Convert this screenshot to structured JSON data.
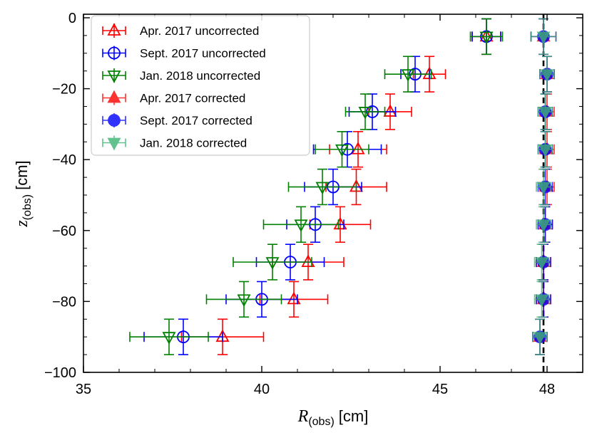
{
  "chart_data": {
    "type": "scatter",
    "title": "",
    "xlabel": {
      "symbol": "R",
      "subscript": "(obs)",
      "unit": "[cm]"
    },
    "ylabel": {
      "symbol": "z",
      "subscript": "(obs)",
      "unit": "[cm]"
    },
    "xlim": [
      35,
      49
    ],
    "ylim": [
      -100,
      1
    ],
    "xticks": [
      35,
      40,
      45,
      48
    ],
    "xtick_labels": [
      "35",
      "40",
      "45",
      "48"
    ],
    "yticks": [
      0,
      -20,
      -40,
      -60,
      -80,
      -100
    ],
    "ytick_labels": [
      "0",
      "−20",
      "−40",
      "−60",
      "−80",
      "−100"
    ],
    "reference_line": {
      "x": 47.9,
      "style": "dashed",
      "color": "#000000"
    },
    "legend_position": "top-left",
    "series": [
      {
        "name": "Apr. 2017 uncorrected",
        "color": "#ff0000",
        "marker": "triangle-up",
        "filled": false,
        "points": [
          {
            "x": 46.3,
            "y": -5.3,
            "xerr": 0.4,
            "yerr": 5
          },
          {
            "x": 44.7,
            "y": -15.9,
            "xerr": 0.45,
            "yerr": 5
          },
          {
            "x": 43.6,
            "y": -26.5,
            "xerr": 0.6,
            "yerr": 5
          },
          {
            "x": 42.7,
            "y": -37.1,
            "xerr": 0.8,
            "yerr": 5
          },
          {
            "x": 42.65,
            "y": -47.7,
            "xerr": 0.85,
            "yerr": 5
          },
          {
            "x": 42.2,
            "y": -58.3,
            "xerr": 0.85,
            "yerr": 5
          },
          {
            "x": 41.3,
            "y": -68.9,
            "xerr": 1.0,
            "yerr": 5
          },
          {
            "x": 40.9,
            "y": -79.4,
            "xerr": 0.95,
            "yerr": 5
          },
          {
            "x": 38.9,
            "y": -90.0,
            "xerr": 1.15,
            "yerr": 5
          }
        ]
      },
      {
        "name": "Sept. 2017 uncorrected",
        "color": "#0000ff",
        "marker": "circle",
        "filled": false,
        "points": [
          {
            "x": 46.3,
            "y": -5.3,
            "xerr": 0.4,
            "yerr": 5
          },
          {
            "x": 44.3,
            "y": -15.9,
            "xerr": 0.4,
            "yerr": 5
          },
          {
            "x": 43.1,
            "y": -26.5,
            "xerr": 0.65,
            "yerr": 5
          },
          {
            "x": 42.4,
            "y": -37.1,
            "xerr": 0.95,
            "yerr": 5
          },
          {
            "x": 42.0,
            "y": -47.7,
            "xerr": 0.8,
            "yerr": 5
          },
          {
            "x": 41.5,
            "y": -58.3,
            "xerr": 0.8,
            "yerr": 5
          },
          {
            "x": 40.8,
            "y": -68.9,
            "xerr": 0.95,
            "yerr": 5
          },
          {
            "x": 40.0,
            "y": -79.4,
            "xerr": 1.0,
            "yerr": 5
          },
          {
            "x": 37.8,
            "y": -90.0,
            "xerr": 1.1,
            "yerr": 5
          }
        ]
      },
      {
        "name": "Jan. 2018 uncorrected",
        "color": "#008000",
        "marker": "triangle-down",
        "filled": false,
        "points": [
          {
            "x": 46.3,
            "y": -5.3,
            "xerr": 0.45,
            "yerr": 5
          },
          {
            "x": 44.1,
            "y": -15.9,
            "xerr": 0.65,
            "yerr": 5
          },
          {
            "x": 42.9,
            "y": -26.5,
            "xerr": 0.55,
            "yerr": 5
          },
          {
            "x": 42.25,
            "y": -37.1,
            "xerr": 0.75,
            "yerr": 5
          },
          {
            "x": 41.7,
            "y": -47.7,
            "xerr": 0.95,
            "yerr": 5
          },
          {
            "x": 41.1,
            "y": -58.3,
            "xerr": 1.05,
            "yerr": 5
          },
          {
            "x": 40.3,
            "y": -68.9,
            "xerr": 1.1,
            "yerr": 5
          },
          {
            "x": 39.5,
            "y": -79.4,
            "xerr": 1.05,
            "yerr": 5
          },
          {
            "x": 37.4,
            "y": -90.0,
            "xerr": 1.1,
            "yerr": 5
          }
        ]
      },
      {
        "name": "Apr. 2017 corrected",
        "color": "#ff0000",
        "marker": "triangle-up",
        "filled": true,
        "points": [
          {
            "x": 47.9,
            "y": -5.3,
            "xerr": 0.35,
            "yerr": 5
          },
          {
            "x": 48.0,
            "y": -15.9,
            "xerr": 0.2,
            "yerr": 5
          },
          {
            "x": 48.0,
            "y": -26.5,
            "xerr": 0.2,
            "yerr": 5
          },
          {
            "x": 48.0,
            "y": -37.1,
            "xerr": 0.2,
            "yerr": 5
          },
          {
            "x": 48.0,
            "y": -47.7,
            "xerr": 0.2,
            "yerr": 5
          },
          {
            "x": 47.95,
            "y": -58.3,
            "xerr": 0.2,
            "yerr": 5
          },
          {
            "x": 47.9,
            "y": -68.9,
            "xerr": 0.2,
            "yerr": 5
          },
          {
            "x": 47.9,
            "y": -79.4,
            "xerr": 0.2,
            "yerr": 5
          },
          {
            "x": 47.8,
            "y": -90.0,
            "xerr": 0.2,
            "yerr": 5
          }
        ]
      },
      {
        "name": "Sept. 2017 corrected",
        "color": "#0000ff",
        "marker": "circle",
        "filled": true,
        "points": [
          {
            "x": 47.9,
            "y": -5.3,
            "xerr": 0.35,
            "yerr": 5
          },
          {
            "x": 48.0,
            "y": -15.9,
            "xerr": 0.2,
            "yerr": 5
          },
          {
            "x": 47.95,
            "y": -26.5,
            "xerr": 0.2,
            "yerr": 5
          },
          {
            "x": 47.95,
            "y": -37.1,
            "xerr": 0.2,
            "yerr": 5
          },
          {
            "x": 47.95,
            "y": -47.7,
            "xerr": 0.2,
            "yerr": 5
          },
          {
            "x": 47.95,
            "y": -58.3,
            "xerr": 0.2,
            "yerr": 5
          },
          {
            "x": 47.9,
            "y": -68.9,
            "xerr": 0.2,
            "yerr": 5
          },
          {
            "x": 47.9,
            "y": -79.4,
            "xerr": 0.2,
            "yerr": 5
          },
          {
            "x": 47.8,
            "y": -90.0,
            "xerr": 0.2,
            "yerr": 5
          }
        ]
      },
      {
        "name": "Jan. 2018 corrected",
        "color": "#3cb371",
        "marker": "triangle-down",
        "filled": true,
        "points": [
          {
            "x": 47.9,
            "y": -5.3,
            "xerr": 0.35,
            "yerr": 5
          },
          {
            "x": 48.0,
            "y": -15.9,
            "xerr": 0.2,
            "yerr": 5
          },
          {
            "x": 47.95,
            "y": -26.5,
            "xerr": 0.2,
            "yerr": 5
          },
          {
            "x": 47.95,
            "y": -37.1,
            "xerr": 0.2,
            "yerr": 5
          },
          {
            "x": 47.9,
            "y": -47.7,
            "xerr": 0.2,
            "yerr": 5
          },
          {
            "x": 47.9,
            "y": -58.3,
            "xerr": 0.2,
            "yerr": 5
          },
          {
            "x": 47.85,
            "y": -68.9,
            "xerr": 0.2,
            "yerr": 5
          },
          {
            "x": 47.85,
            "y": -79.4,
            "xerr": 0.2,
            "yerr": 5
          },
          {
            "x": 47.8,
            "y": -90.0,
            "xerr": 0.2,
            "yerr": 5
          }
        ]
      }
    ]
  }
}
